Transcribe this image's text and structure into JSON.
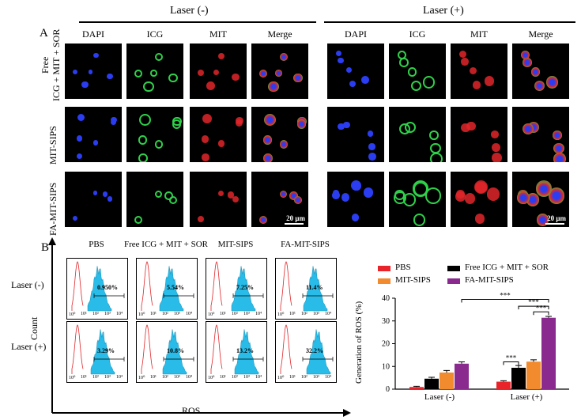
{
  "panel_a": {
    "label": "A",
    "group_neg": "Laser (-)",
    "group_pos": "Laser (+)",
    "columns": [
      "DAPI",
      "ICG",
      "MIT",
      "Merge"
    ],
    "rows": [
      "Free\nICG + MIT + SOR",
      "MIT-SIPS",
      "FA-MIT-SIPS"
    ],
    "row_line1": "Free",
    "row_line2": "ICG + MIT + SOR",
    "scale_bar": "20 μm",
    "channel_colors": {
      "DAPI": "#2b3df0",
      "ICG": "#2fd04a",
      "MIT": "#e0262a"
    }
  },
  "panel_b": {
    "label": "B",
    "columns": [
      "PBS",
      "Free ICG + MIT + SOR",
      "MIT-SIPS",
      "FA-MIT-SIPS"
    ],
    "rows": [
      "Laser (-)",
      "Laser (+)"
    ],
    "percentages": [
      [
        "0.950%",
        "5.54%",
        "7.25%",
        "11.4%"
      ],
      [
        "3.29%",
        "10.8%",
        "13.2%",
        "32.2%"
      ]
    ],
    "y_axis": "Count",
    "x_axis": "ROS",
    "ticks": [
      "10⁰",
      "10¹",
      "10²",
      "10³",
      "10⁴"
    ],
    "fill_color": "#29bce8",
    "line_color": "#e0262a"
  },
  "chart_data": {
    "type": "bar",
    "categories": [
      "Laser (-)",
      "Laser (+)"
    ],
    "series": [
      {
        "name": "PBS",
        "values": [
          0.95,
          3.29
        ],
        "errors": [
          0.3,
          0.4
        ],
        "color": "#e8232a"
      },
      {
        "name": "Free ICG + MIT + SOR",
        "values": [
          4.6,
          9.4
        ],
        "errors": [
          0.6,
          1.0
        ],
        "color": "#000000"
      },
      {
        "name": "MIT-SIPS",
        "values": [
          7.3,
          12.1
        ],
        "errors": [
          0.9,
          0.8
        ],
        "color": "#f28a2e"
      },
      {
        "name": "FA-MIT-SIPS",
        "values": [
          11.2,
          31.4
        ],
        "errors": [
          0.8,
          0.6
        ],
        "color": "#8a2a8e"
      }
    ],
    "ylabel": "Generation of ROS  (%)",
    "ylim": [
      0,
      40
    ],
    "yticks": [
      "0",
      "10",
      "20",
      "30",
      "40"
    ],
    "significance": "***",
    "legend_position": "top"
  }
}
